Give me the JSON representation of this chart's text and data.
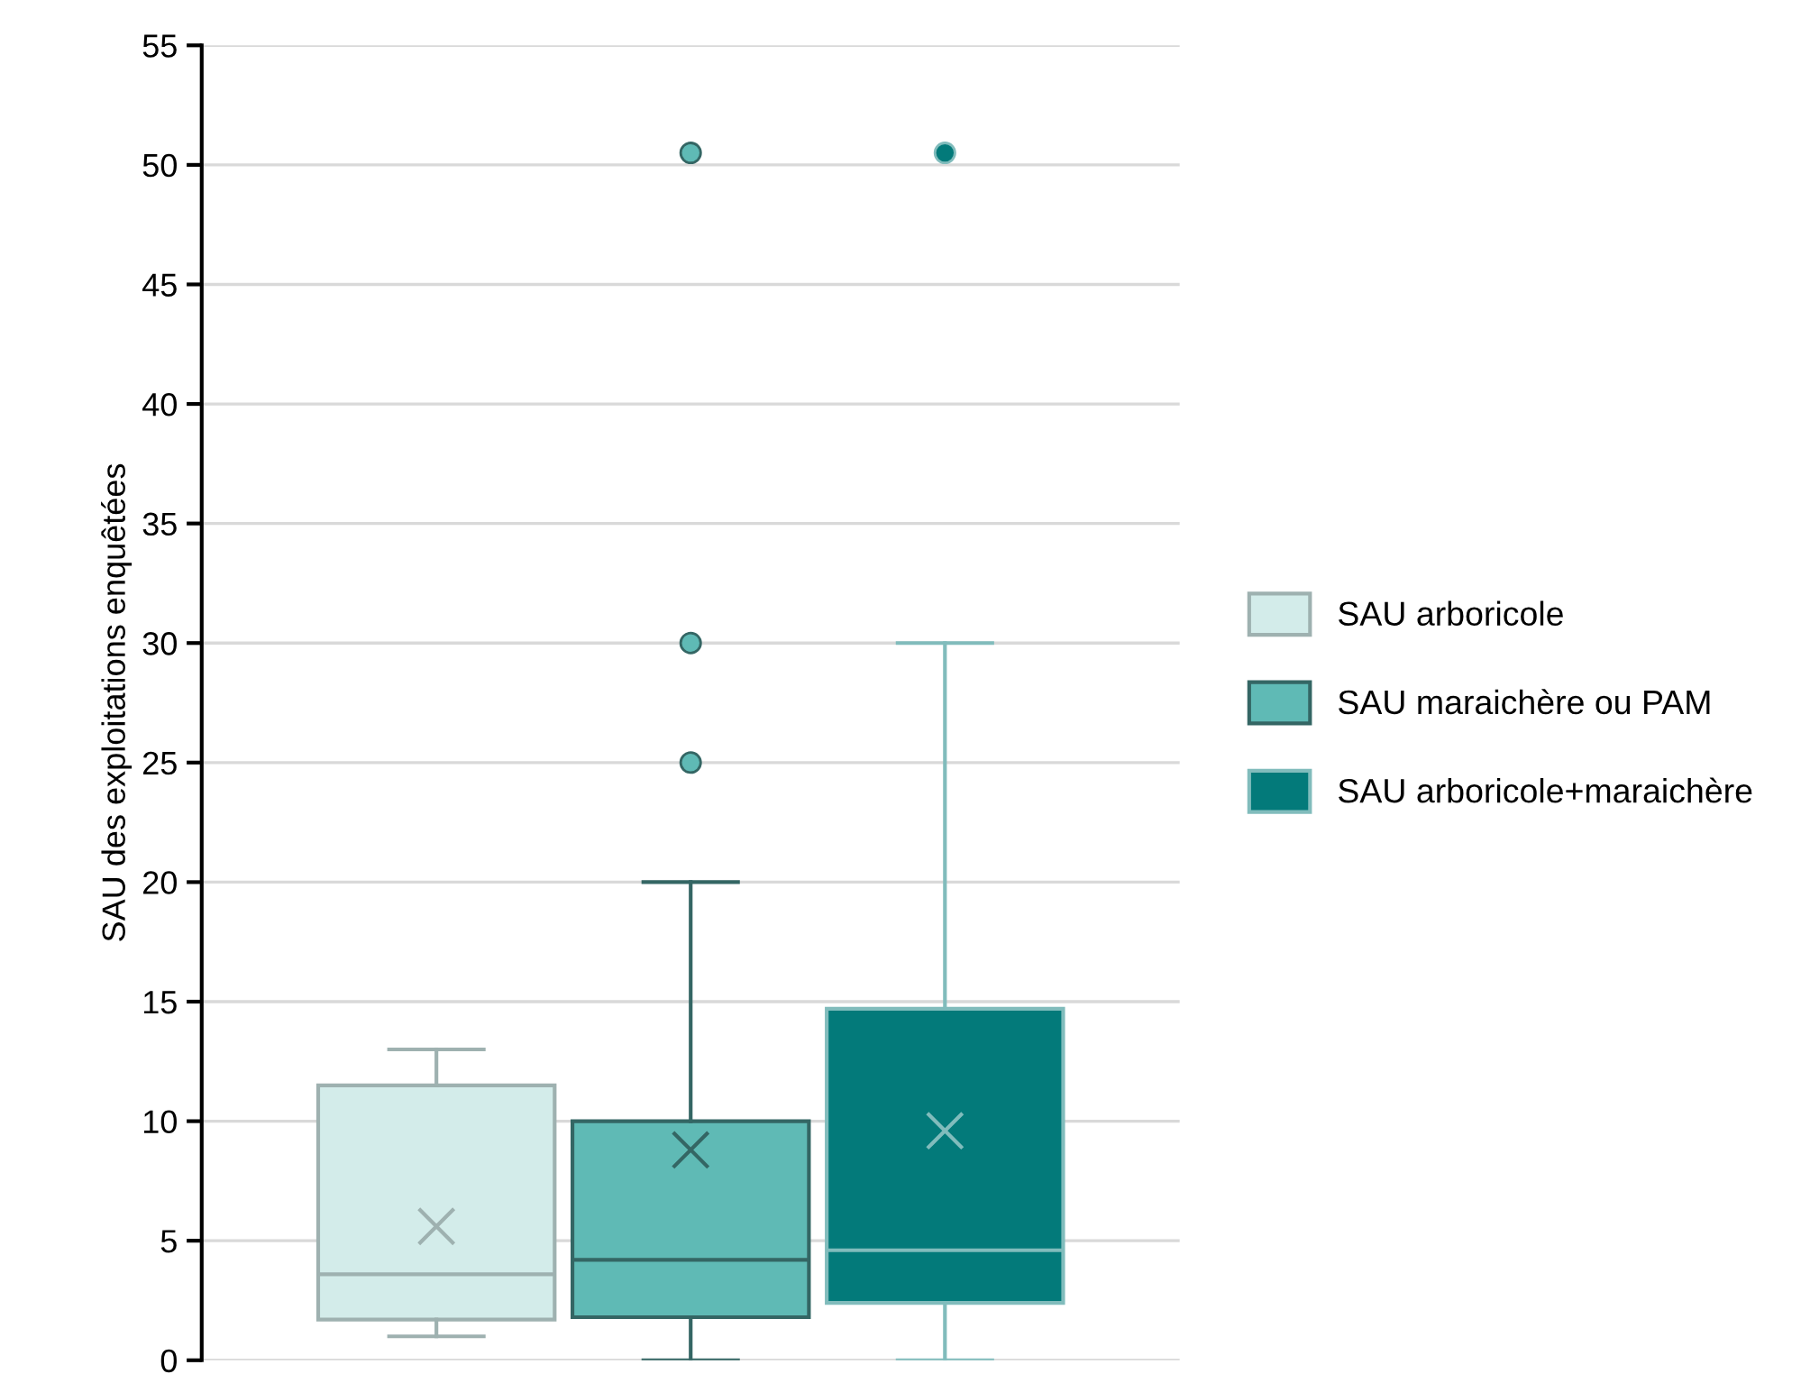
{
  "chart_data": {
    "type": "box",
    "ylabel": "SAU des exploitations enquêtées",
    "categories": [
      null
    ],
    "series": [
      {
        "name": "SAU arboricole",
        "color": "#d3ecea",
        "boxes": [
          {
            "low": 1,
            "q1": 1.7,
            "median": 3.6,
            "q3": 11.5,
            "high": 13,
            "mean": 5.6
          }
        ]
      },
      {
        "name": "SAU maraichère ou PAM",
        "color": "#5fbab5",
        "boxes": [
          {
            "low": 0,
            "q1": 1.8,
            "median": 4.2,
            "q3": 10,
            "high": 20,
            "mean": 8.8,
            "outliers": [
              25,
              30,
              50.5
            ]
          }
        ]
      },
      {
        "name": "SAU arboricole+maraichère",
        "color": "#037a7a",
        "boxes": [
          {
            "low": 0,
            "q1": 2.4,
            "median": 4.6,
            "q3": 14.7,
            "high": 30,
            "mean": 9.6,
            "outliers": [
              50.5
            ]
          }
        ]
      }
    ],
    "ylim": [
      0,
      55
    ],
    "yticks": [
      0,
      5,
      10,
      15,
      20,
      25,
      30,
      35,
      40,
      45,
      50,
      55
    ],
    "grid": "y",
    "legend": "right",
    "marker": "circle"
  }
}
